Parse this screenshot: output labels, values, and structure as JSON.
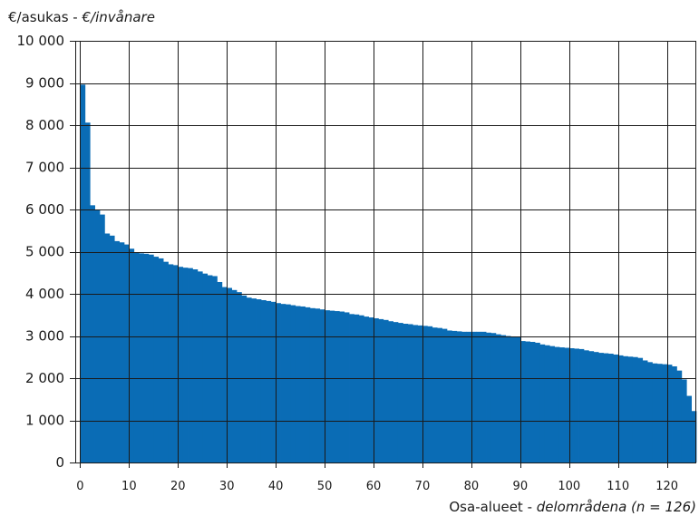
{
  "chart_data": {
    "type": "bar",
    "ylabel_main": "€/asukas - ",
    "ylabel_italic": "€/invånare",
    "xlabel_main": "Osa-alueet - ",
    "xlabel_italic": "delområdena (n = 126)",
    "xlim": [
      -1,
      126
    ],
    "ylim": [
      0,
      10000
    ],
    "xticks": [
      0,
      10,
      20,
      30,
      40,
      50,
      60,
      70,
      80,
      90,
      100,
      110,
      120
    ],
    "yticks": [
      0,
      1000,
      2000,
      3000,
      4000,
      5000,
      6000,
      7000,
      8000,
      9000,
      10000
    ],
    "ytick_labels": [
      "0",
      "1 000",
      "2 000",
      "3 000",
      "4 000",
      "5 000",
      "6 000",
      "7 000",
      "8 000",
      "9 000",
      "10 000"
    ],
    "grid": true,
    "bar_color": "#0a6cb5",
    "values": [
      8960,
      8060,
      6100,
      5980,
      5880,
      5430,
      5380,
      5250,
      5220,
      5170,
      5070,
      4970,
      4960,
      4950,
      4930,
      4880,
      4840,
      4760,
      4700,
      4680,
      4640,
      4620,
      4610,
      4580,
      4530,
      4480,
      4440,
      4420,
      4280,
      4160,
      4140,
      4090,
      4040,
      3960,
      3910,
      3890,
      3870,
      3850,
      3830,
      3810,
      3780,
      3760,
      3750,
      3730,
      3710,
      3700,
      3680,
      3660,
      3650,
      3630,
      3610,
      3600,
      3590,
      3580,
      3560,
      3520,
      3510,
      3490,
      3460,
      3440,
      3420,
      3400,
      3380,
      3350,
      3330,
      3310,
      3290,
      3280,
      3260,
      3250,
      3240,
      3230,
      3200,
      3190,
      3170,
      3130,
      3120,
      3110,
      3100,
      3100,
      3100,
      3100,
      3100,
      3080,
      3070,
      3040,
      3020,
      3000,
      2990,
      2980,
      2880,
      2870,
      2860,
      2840,
      2800,
      2780,
      2760,
      2740,
      2730,
      2720,
      2710,
      2700,
      2690,
      2660,
      2640,
      2620,
      2600,
      2590,
      2580,
      2560,
      2540,
      2520,
      2510,
      2500,
      2480,
      2420,
      2380,
      2350,
      2340,
      2330,
      2320,
      2280,
      2180,
      1970,
      1580,
      1220
    ]
  }
}
